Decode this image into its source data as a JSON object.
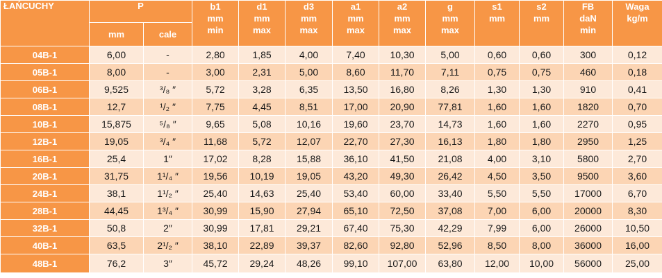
{
  "header": {
    "name": "ŁAŃCUCHY",
    "p": "P",
    "p_mm": "mm",
    "p_cale": "cale",
    "b1": [
      "b1",
      "mm",
      "min"
    ],
    "d1": [
      "d1",
      "mm",
      "max"
    ],
    "d3": [
      "d3",
      "mm",
      "max"
    ],
    "a1": [
      "a1",
      "mm",
      "max"
    ],
    "a2": [
      "a2",
      "mm",
      "max"
    ],
    "g": [
      "g",
      "mm",
      "max"
    ],
    "s1": [
      "s1",
      "mm"
    ],
    "s2": [
      "s2",
      "mm"
    ],
    "fb": [
      "FB",
      "daN",
      "min"
    ],
    "waga": [
      "Waga",
      "kg/m"
    ]
  },
  "rows": [
    {
      "name": "04B-1",
      "p_mm": "6,00",
      "p_cale": "-",
      "b1": "2,80",
      "d1": "1,85",
      "d3": "4,00",
      "a1": "7,40",
      "a2": "10,30",
      "g": "5,00",
      "s1": "0,60",
      "s2": "0,60",
      "fb": "300",
      "waga": "0,12"
    },
    {
      "name": "05B-1",
      "p_mm": "8,00",
      "p_cale": "-",
      "b1": "3,00",
      "d1": "2,31",
      "d3": "5,00",
      "a1": "8,60",
      "a2": "11,70",
      "g": "7,11",
      "s1": "0,75",
      "s2": "0,75",
      "fb": "460",
      "waga": "0,18"
    },
    {
      "name": "06B-1",
      "p_mm": "9,525",
      "p_cale": "³/₈ ″",
      "b1": "5,72",
      "d1": "3,28",
      "d3": "6,35",
      "a1": "13,50",
      "a2": "16,80",
      "g": "8,26",
      "s1": "1,30",
      "s2": "1,30",
      "fb": "910",
      "waga": "0,41"
    },
    {
      "name": "08B-1",
      "p_mm": "12,7",
      "p_cale": "¹/₂ ″",
      "b1": "7,75",
      "d1": "4,45",
      "d3": "8,51",
      "a1": "17,00",
      "a2": "20,90",
      "g": "77,81",
      "s1": "1,60",
      "s2": "1,60",
      "fb": "1820",
      "waga": "0,70"
    },
    {
      "name": "10B-1",
      "p_mm": "15,875",
      "p_cale": "⁵/₈ ″",
      "b1": "9,65",
      "d1": "5,08",
      "d3": "10,16",
      "a1": "19,60",
      "a2": "23,70",
      "g": "14,73",
      "s1": "1,60",
      "s2": "1,60",
      "fb": "2270",
      "waga": "0,95"
    },
    {
      "name": "12B-1",
      "p_mm": "19,05",
      "p_cale": "³/₄ ″",
      "b1": "11,68",
      "d1": "5,72",
      "d3": "12,07",
      "a1": "22,70",
      "a2": "27,30",
      "g": "16,13",
      "s1": "1,80",
      "s2": "1,80",
      "fb": "2950",
      "waga": "1,25"
    },
    {
      "name": "16B-1",
      "p_mm": "25,4",
      "p_cale": "1″",
      "b1": "17,02",
      "d1": "8,28",
      "d3": "15,88",
      "a1": "36,10",
      "a2": "41,50",
      "g": "21,08",
      "s1": "4,00",
      "s2": "3,10",
      "fb": "5800",
      "waga": "2,70"
    },
    {
      "name": "20B-1",
      "p_mm": "31,75",
      "p_cale": "1¹/₄ ″",
      "b1": "19,56",
      "d1": "10,19",
      "d3": "19,05",
      "a1": "43,20",
      "a2": "49,30",
      "g": "26,42",
      "s1": "4,50",
      "s2": "3,50",
      "fb": "9500",
      "waga": "3,60"
    },
    {
      "name": "24B-1",
      "p_mm": "38,1",
      "p_cale": "1¹/₂ ″",
      "b1": "25,40",
      "d1": "14,63",
      "d3": "25,40",
      "a1": "53,40",
      "a2": "60,00",
      "g": "33,40",
      "s1": "5,50",
      "s2": "5,50",
      "fb": "17000",
      "waga": "6,70"
    },
    {
      "name": "28B-1",
      "p_mm": "44,45",
      "p_cale": "1³/₄ ″",
      "b1": "30,99",
      "d1": "15,90",
      "d3": "27,94",
      "a1": "65,10",
      "a2": "72,50",
      "g": "37,08",
      "s1": "7,00",
      "s2": "6,00",
      "fb": "20000",
      "waga": "8,30"
    },
    {
      "name": "32B-1",
      "p_mm": "50,8",
      "p_cale": "2″",
      "b1": "30,99",
      "d1": "17,81",
      "d3": "29,21",
      "a1": "67,40",
      "a2": "75,30",
      "g": "42,29",
      "s1": "7,99",
      "s2": "6,00",
      "fb": "26000",
      "waga": "10,50"
    },
    {
      "name": "40B-1",
      "p_mm": "63,5",
      "p_cale": "2¹/₂ ″",
      "b1": "38,10",
      "d1": "22,89",
      "d3": "39,37",
      "a1": "82,60",
      "a2": "92,80",
      "g": "52,96",
      "s1": "8,50",
      "s2": "8,00",
      "fb": "36000",
      "waga": "16,00"
    },
    {
      "name": "48B-1",
      "p_mm": "76,2",
      "p_cale": "3″",
      "b1": "45,72",
      "d1": "29,24",
      "d3": "48,26",
      "a1": "99,10",
      "a2": "107,00",
      "g": "63,80",
      "s1": "12,00",
      "s2": "10,00",
      "fb": "56000",
      "waga": "25,00"
    }
  ]
}
